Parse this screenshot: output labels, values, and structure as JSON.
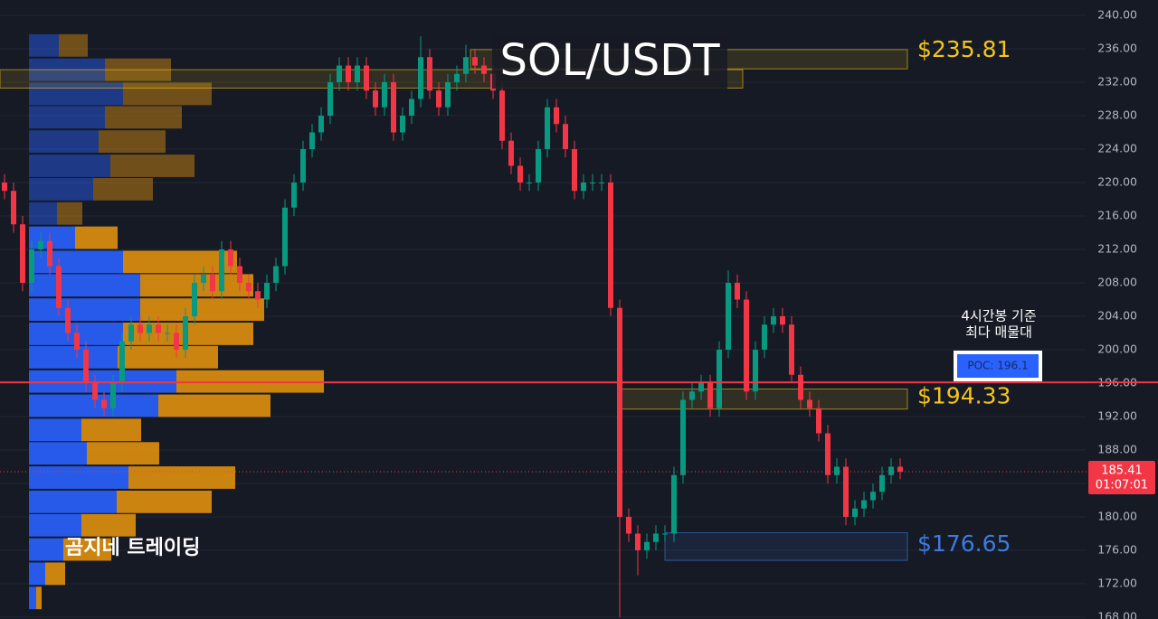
{
  "chart_data": {
    "type": "candlestick",
    "title": "SOL/USDT",
    "up_color": "#089981",
    "down_color": "#f23645",
    "open": [
      220,
      219,
      215,
      208,
      212,
      213,
      210,
      205,
      202,
      200,
      196,
      194,
      193,
      196,
      201,
      203,
      202,
      203,
      202,
      202,
      200,
      204,
      208,
      209,
      207,
      212,
      210,
      208,
      207,
      206,
      208,
      210,
      217,
      220,
      224,
      226,
      228,
      232,
      234,
      232,
      234,
      231,
      229,
      232,
      226,
      228,
      230,
      235,
      231,
      229,
      232,
      233,
      235,
      234,
      233,
      231,
      225,
      222,
      220,
      220,
      224,
      229,
      227,
      224,
      219,
      220,
      220,
      220,
      205,
      180,
      178,
      176,
      177,
      178,
      178,
      185,
      194,
      195,
      196,
      193,
      200,
      208,
      206,
      195,
      200,
      203,
      204,
      203,
      197,
      194,
      193,
      190,
      185,
      186,
      180,
      181,
      182,
      183,
      185,
      186
    ],
    "high": [
      221,
      220,
      216,
      213,
      214,
      214,
      211,
      206,
      203,
      201,
      197,
      195,
      197,
      202,
      204,
      204,
      204,
      204,
      203,
      203,
      205,
      209,
      210,
      210,
      213,
      213,
      211,
      209,
      208,
      209,
      211,
      218,
      221,
      225,
      227,
      229,
      233,
      235,
      235,
      235,
      235,
      232,
      233,
      233,
      229,
      231,
      237.5,
      236,
      232,
      233,
      234,
      236.5,
      236,
      235,
      234,
      232,
      226,
      223,
      221,
      225,
      230,
      230,
      228,
      225,
      221,
      221,
      221,
      221,
      206,
      181,
      179,
      178,
      179,
      179,
      186,
      195,
      196,
      197,
      197,
      201,
      209.5,
      209,
      207,
      201,
      204,
      205,
      205,
      204,
      198,
      195,
      194,
      191,
      187,
      187,
      182,
      183,
      184,
      186,
      187,
      187
    ],
    "low": [
      218,
      214,
      207,
      207,
      211,
      209,
      204,
      201,
      199,
      195,
      193,
      192,
      192,
      195,
      200,
      201,
      201,
      201,
      201,
      199,
      199,
      203,
      207,
      206,
      206,
      209,
      207,
      206,
      205,
      205,
      207,
      209,
      216,
      219,
      223,
      225,
      227,
      231,
      231,
      231,
      230,
      228,
      228,
      225,
      225,
      227,
      229,
      230,
      228,
      228,
      231,
      232,
      233,
      232,
      230,
      224,
      221,
      219,
      219,
      219,
      223,
      226,
      223,
      218,
      218,
      219,
      219,
      204,
      168,
      177,
      173,
      175,
      176,
      177,
      177,
      184,
      193,
      194,
      192,
      192,
      199,
      205,
      194,
      194,
      199,
      202,
      202,
      196,
      193,
      192,
      189,
      184,
      184,
      179,
      179,
      180,
      181,
      182,
      184,
      184.5
    ],
    "close": [
      219,
      215,
      208,
      212,
      213,
      210,
      205,
      202,
      200,
      196,
      194,
      193,
      196,
      201,
      203,
      202,
      203,
      202,
      202,
      200,
      204,
      208,
      209,
      207,
      212,
      210,
      208,
      207,
      206,
      208,
      210,
      217,
      220,
      224,
      226,
      228,
      232,
      234,
      232,
      234,
      231,
      229,
      232,
      226,
      228,
      230,
      235,
      231,
      229,
      232,
      233,
      235,
      234,
      233,
      231,
      225,
      222,
      220,
      220,
      224,
      229,
      227,
      224,
      219,
      220,
      220,
      220,
      205,
      180,
      178,
      176,
      177,
      178,
      178,
      185,
      194,
      195,
      196,
      193,
      200,
      208,
      206,
      195,
      200,
      203,
      204,
      203,
      197,
      194,
      193,
      190,
      185,
      186,
      180,
      181,
      182,
      183,
      185,
      186,
      185.41
    ],
    "ylim": [
      168,
      240
    ],
    "yticks": [
      {
        "value": 240,
        "label": "240.00"
      },
      {
        "value": 236,
        "label": "236.00"
      },
      {
        "value": 232,
        "label": "232.00"
      },
      {
        "value": 228,
        "label": "228.00"
      },
      {
        "value": 224,
        "label": "224.00"
      },
      {
        "value": 220,
        "label": "220.00"
      },
      {
        "value": 216,
        "label": "216.00"
      },
      {
        "value": 212,
        "label": "212.00"
      },
      {
        "value": 208,
        "label": "208.00"
      },
      {
        "value": 204,
        "label": "204.00"
      },
      {
        "value": 200,
        "label": "200.00"
      },
      {
        "value": 196,
        "label": "196.00"
      },
      {
        "value": 192,
        "label": "192.00"
      },
      {
        "value": 188,
        "label": "188.00"
      },
      {
        "value": 184,
        "label": "184.00"
      },
      {
        "value": 180,
        "label": "180.00"
      },
      {
        "value": 176,
        "label": "176.00"
      },
      {
        "value": 172,
        "label": "172.00"
      },
      {
        "value": 168,
        "label": "168.00"
      }
    ],
    "grid": true,
    "volume_profile": {
      "levels": [
        236.4,
        233.5,
        230.6,
        227.8,
        224.9,
        222.0,
        219.2,
        216.3,
        213.4,
        210.5,
        207.7,
        204.8,
        201.9,
        199.1,
        196.2,
        193.3,
        190.4,
        187.6,
        184.7,
        181.8,
        179.0,
        176.1,
        173.2,
        170.3
      ],
      "buy": [
        33,
        84,
        104,
        84,
        77,
        90,
        71,
        31,
        51,
        104,
        123,
        123,
        104,
        98,
        163,
        143,
        58,
        64,
        110,
        97,
        58,
        38,
        18,
        8
      ],
      "sell": [
        32,
        73,
        98,
        85,
        74,
        93,
        66,
        28,
        47,
        126,
        125,
        137,
        144,
        111,
        163,
        124,
        66,
        80,
        118,
        105,
        60,
        53,
        22,
        6
      ],
      "buy_color": "#2962ff",
      "sell_color": "#e0900f"
    },
    "zones": [
      {
        "top": 235.9,
        "bottom": 233.6,
        "label": {
          "value": 235.81,
          "label": "$235.81"
        },
        "color": "#f5c518"
      },
      {
        "top": 233.5,
        "bottom": 231.3,
        "color": "#f5c518"
      },
      {
        "top": 195.3,
        "bottom": 192.9,
        "label": {
          "value": 194.33,
          "label": "$194.33"
        },
        "color": "#f5c518"
      },
      {
        "top": 178.1,
        "bottom": 174.8,
        "label": {
          "value": 176.65,
          "label": "$176.65"
        },
        "color": "#3d7be0"
      }
    ],
    "poc": {
      "value": 196.1,
      "label": "POC: 196.1",
      "color": "#f23645"
    },
    "annotation": [
      "4시간봉 기준",
      "최다 매물대"
    ],
    "last_price": {
      "value": 185.41,
      "label": "185.41",
      "countdown": "01:07:01"
    },
    "watermark": "곰지네 트레이딩"
  }
}
